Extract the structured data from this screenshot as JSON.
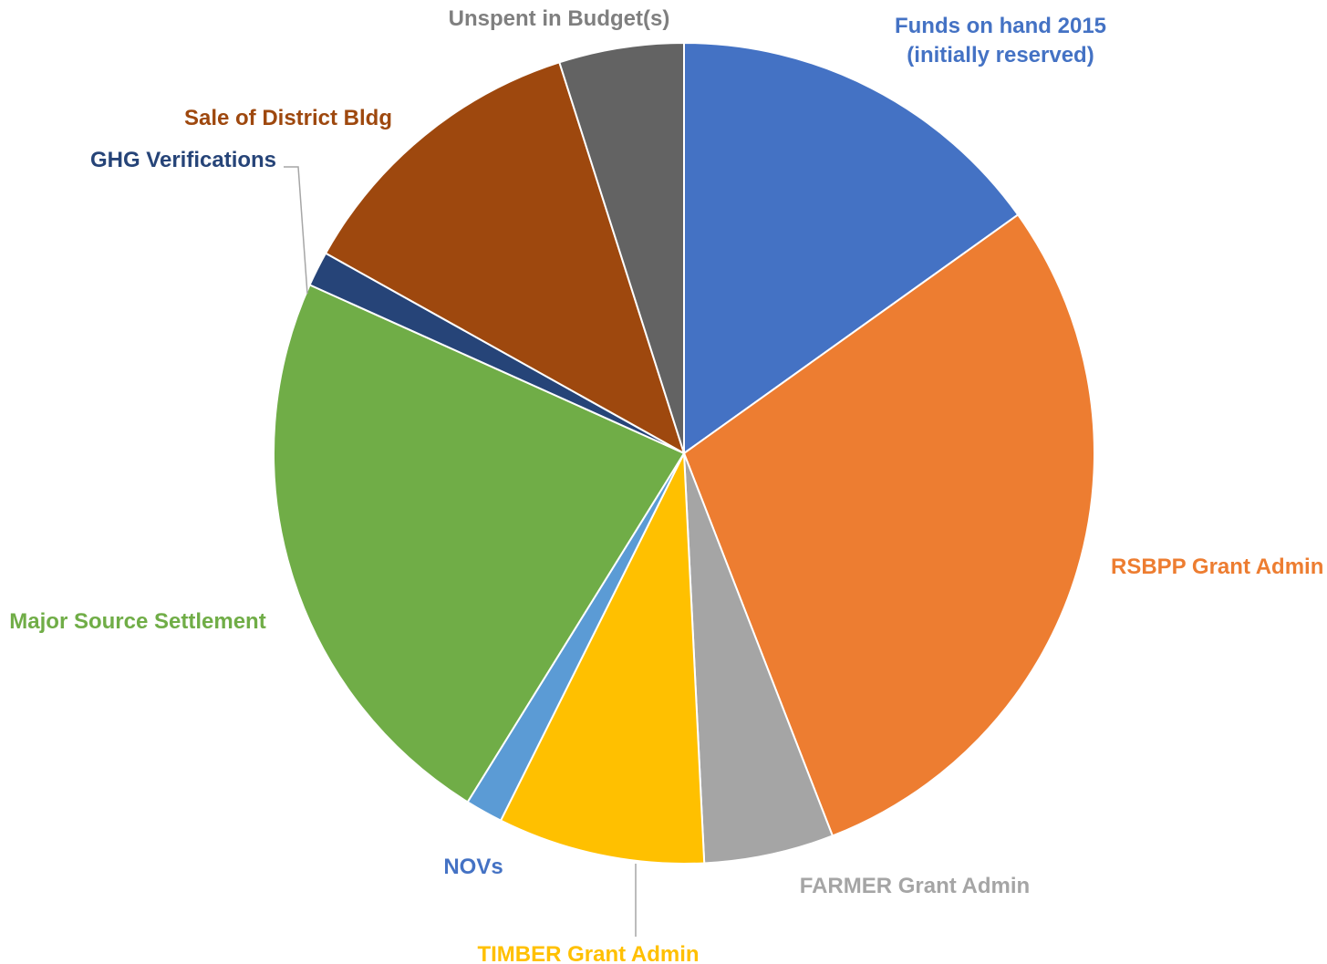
{
  "chart_data": {
    "type": "pie",
    "title": "",
    "start_angle_deg": 0,
    "direction": "clockwise",
    "legend": "none",
    "slices": [
      {
        "label_lines": [
          "Funds on hand 2015",
          "(initially reserved)"
        ],
        "value": 15.4,
        "color": "#4472C4",
        "label_color": "#4472C4"
      },
      {
        "label_lines": [
          "RSBPP Grant Admin"
        ],
        "value": 29.5,
        "color": "#ED7D31",
        "label_color": "#ED7D31"
      },
      {
        "label_lines": [
          "FARMER Grant Admin"
        ],
        "value": 5.2,
        "color": "#A5A5A5",
        "label_color": "#A5A5A5"
      },
      {
        "label_lines": [
          "TIMBER Grant Admin"
        ],
        "value": 8.3,
        "color": "#FFC000",
        "label_color": "#FFC000"
      },
      {
        "label_lines": [
          "NOVs"
        ],
        "value": 1.5,
        "color": "#5B9BD5",
        "label_color": "#4472C4"
      },
      {
        "label_lines": [
          "Major Source Settlement"
        ],
        "value": 23.3,
        "color": "#70AD47",
        "label_color": "#70AD47"
      },
      {
        "label_lines": [
          "GHG Verifications"
        ],
        "value": 1.4,
        "color": "#264478",
        "label_color": "#264478"
      },
      {
        "label_lines": [
          "Sale of District Bldg"
        ],
        "value": 12.2,
        "color": "#9E480E",
        "label_color": "#9E480E"
      },
      {
        "label_lines": [
          "Unspent in Budget(s)"
        ],
        "value": 5.0,
        "color": "#636363",
        "label_color": "#7F7F7F"
      }
    ]
  }
}
